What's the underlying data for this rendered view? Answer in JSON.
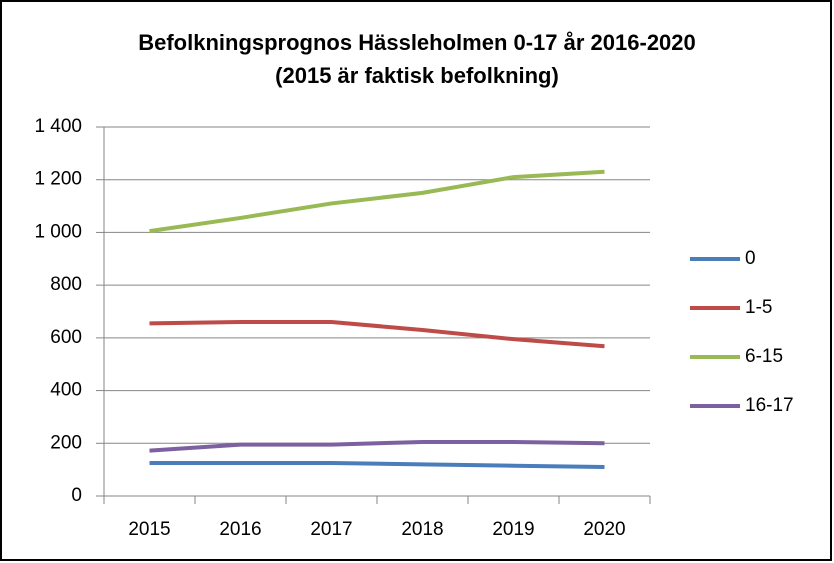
{
  "chart_data": {
    "type": "line",
    "title": "Befolkningsprognos Hässleholmen 0-17 år 2016-2020",
    "subtitle": "(2015 är faktisk befolkning)",
    "categories": [
      "2015",
      "2016",
      "2017",
      "2018",
      "2019",
      "2020"
    ],
    "series": [
      {
        "name": "0",
        "color": "#4a7ebb",
        "values": [
          125,
          125,
          125,
          120,
          115,
          110
        ]
      },
      {
        "name": "1-5",
        "color": "#be4b48",
        "values": [
          655,
          660,
          660,
          630,
          595,
          568
        ]
      },
      {
        "name": "6-15",
        "color": "#98b954",
        "values": [
          1005,
          1055,
          1110,
          1150,
          1210,
          1230
        ]
      },
      {
        "name": "16-17",
        "color": "#7d60a0",
        "values": [
          172,
          195,
          195,
          205,
          205,
          200
        ]
      }
    ],
    "ylim": [
      0,
      1400
    ],
    "yticks": [
      0,
      200,
      400,
      600,
      800,
      {
        "value": 1000,
        "label": "1 000"
      },
      {
        "value": 1200,
        "label": "1 200"
      },
      {
        "value": 1400,
        "label": "1 400"
      }
    ],
    "grid": true,
    "legend": "right"
  }
}
